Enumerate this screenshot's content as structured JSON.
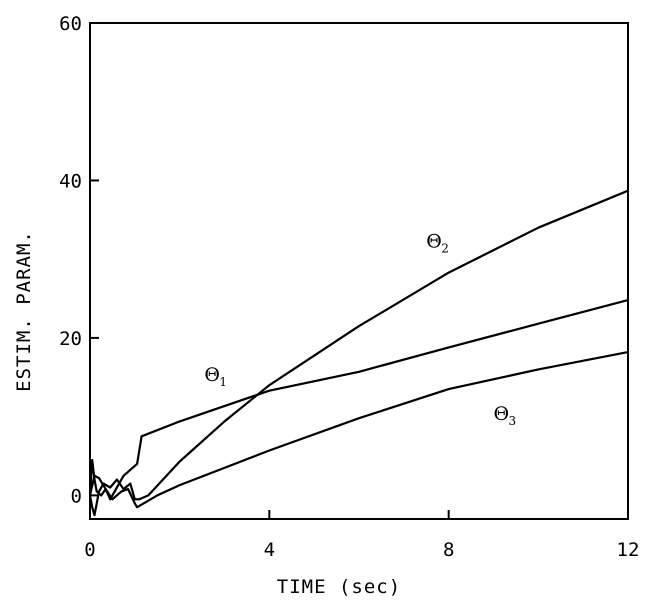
{
  "chart_data": {
    "type": "line",
    "xlabel": "TIME (sec)",
    "ylabel": "ESTIM. PARAM.",
    "xlim": [
      0,
      12
    ],
    "ylim": [
      -3,
      60
    ],
    "grid": false,
    "x_ticks": [
      {
        "value": 0,
        "label": "0"
      },
      {
        "value": 4,
        "label": "4"
      },
      {
        "value": 8,
        "label": "8"
      },
      {
        "value": 12,
        "label": "12"
      }
    ],
    "y_ticks": [
      {
        "value": 0,
        "label": "0"
      },
      {
        "value": 20,
        "label": "20"
      },
      {
        "value": 40,
        "label": "40"
      },
      {
        "value": 60,
        "label": "60"
      }
    ],
    "series": [
      {
        "name": "Θ1",
        "symbol": "Θ",
        "subscript": "1",
        "x": [
          0,
          0.05,
          0.1,
          0.15,
          0.25,
          0.35,
          0.45,
          0.55,
          0.65,
          0.75,
          0.85,
          0.95,
          1.05,
          1.15,
          2,
          4,
          6,
          8,
          10,
          12
        ],
        "y": [
          0,
          4.5,
          2,
          0.5,
          0,
          0.8,
          -0.5,
          0.5,
          1.5,
          2.5,
          3.0,
          3.5,
          4.0,
          7.5,
          9.4,
          13.3,
          15.7,
          18.8,
          21.8,
          24.8
        ]
      },
      {
        "name": "Θ2",
        "symbol": "Θ",
        "subscript": "2",
        "x": [
          0,
          0.05,
          0.1,
          0.2,
          0.3,
          0.45,
          0.6,
          0.75,
          0.9,
          1.0,
          1.1,
          1.3,
          2,
          3,
          4,
          6,
          8,
          10,
          12
        ],
        "y": [
          0,
          -1.5,
          -2.5,
          0.5,
          1.5,
          1.0,
          2.0,
          0.8,
          1.5,
          -0.5,
          -0.5,
          0,
          4.3,
          9.4,
          14,
          21.5,
          28.3,
          34.0,
          38.7
        ]
      },
      {
        "name": "Θ3",
        "symbol": "Θ",
        "subscript": "3",
        "x": [
          0,
          0.1,
          0.2,
          0.35,
          0.5,
          0.7,
          0.85,
          1.0,
          1.05,
          1.2,
          1.5,
          2,
          4,
          6,
          8,
          10,
          12
        ],
        "y": [
          0,
          2.5,
          2.2,
          0.8,
          -0.5,
          0.5,
          0.8,
          -1.0,
          -1.5,
          -1.0,
          0,
          1.3,
          5.7,
          9.8,
          13.5,
          16.0,
          18.2
        ]
      }
    ],
    "annotations": [
      {
        "series": "Θ1",
        "x": 2.55,
        "y": 14.5
      },
      {
        "series": "Θ2",
        "x": 7.5,
        "y": 31.5
      },
      {
        "series": "Θ3",
        "x": 9.0,
        "y": 9.6
      }
    ]
  }
}
